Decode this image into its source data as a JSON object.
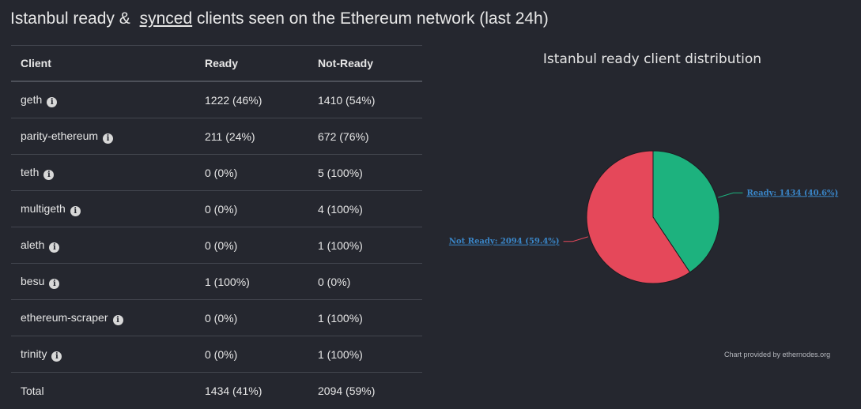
{
  "page": {
    "title_part1": "Istanbul ready &",
    "title_link": "synced",
    "title_part2": "clients seen on the Ethereum network (last 24h)"
  },
  "table": {
    "headers": [
      "Client",
      "Ready",
      "Not-Ready"
    ],
    "rows": [
      {
        "client": "geth",
        "ready": "1222 (46%)",
        "not_ready": "1410 (54%)"
      },
      {
        "client": "parity-ethereum",
        "ready": "211 (24%)",
        "not_ready": "672 (76%)"
      },
      {
        "client": "teth",
        "ready": "0 (0%)",
        "not_ready": "5 (100%)"
      },
      {
        "client": "multigeth",
        "ready": "0 (0%)",
        "not_ready": "4 (100%)"
      },
      {
        "client": "aleth",
        "ready": "0 (0%)",
        "not_ready": "1 (100%)"
      },
      {
        "client": "besu",
        "ready": "1 (100%)",
        "not_ready": "0 (0%)"
      },
      {
        "client": "ethereum-scraper",
        "ready": "0 (0%)",
        "not_ready": "1 (100%)"
      },
      {
        "client": "trinity",
        "ready": "0 (0%)",
        "not_ready": "1 (100%)"
      }
    ],
    "total": {
      "label": "Total",
      "ready": "1434 (41%)",
      "not_ready": "2094 (59%)"
    }
  },
  "chart_data": {
    "type": "pie",
    "title": "Istanbul ready client distribution",
    "slices": [
      {
        "label": "Ready: 1434 (40.6%)",
        "value": 1434,
        "color": "#1db27e"
      },
      {
        "label": "Not Ready: 2094 (59.4%)",
        "value": 2094,
        "color": "#e5485a"
      }
    ],
    "credit": "Chart provided by ethernodes.org"
  },
  "colors": {
    "background": "#25272f",
    "ready": "#1db27e",
    "not_ready": "#e5485a",
    "label_link": "#3a86c8"
  },
  "icons": {
    "info": "info-icon"
  }
}
